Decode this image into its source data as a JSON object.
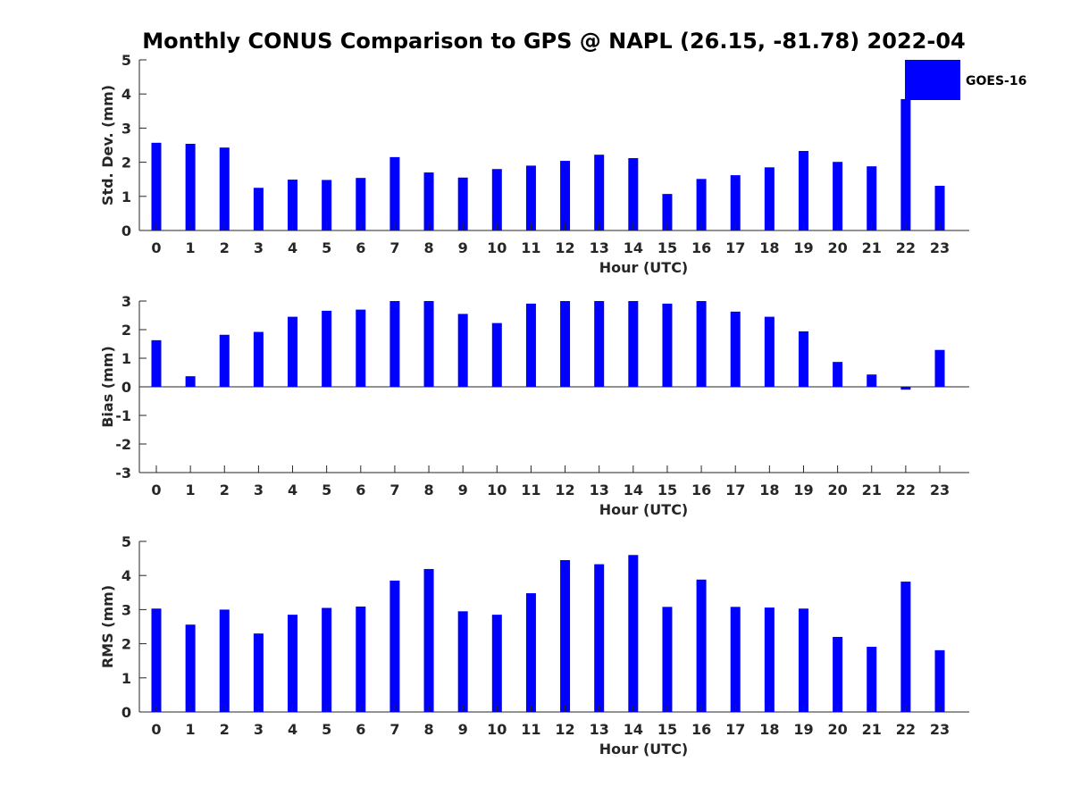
{
  "title": "Monthly CONUS Comparison to GPS @ NAPL (26.15, -81.78) 2022-04",
  "legend": {
    "label": "GOES-16",
    "color": "#0000ff",
    "placement": "top-right"
  },
  "chart_data": [
    {
      "type": "bar",
      "name": "std-dev",
      "title": "",
      "xlabel": "Hour (UTC)",
      "ylabel": "Std. Dev. (mm)",
      "categories": [
        "0",
        "1",
        "2",
        "3",
        "4",
        "5",
        "6",
        "7",
        "8",
        "9",
        "10",
        "11",
        "12",
        "13",
        "14",
        "15",
        "16",
        "17",
        "18",
        "19",
        "20",
        "21",
        "22",
        "23"
      ],
      "values": [
        2.57,
        2.54,
        2.43,
        1.25,
        1.49,
        1.48,
        1.54,
        2.15,
        1.7,
        1.55,
        1.8,
        1.9,
        2.04,
        2.22,
        2.12,
        1.07,
        1.51,
        1.62,
        1.85,
        2.33,
        2.01,
        1.88,
        3.85,
        1.31
      ],
      "ylim": [
        0,
        5
      ],
      "yticks": [
        0,
        1,
        2,
        3,
        4,
        5
      ],
      "color": "#0000ff"
    },
    {
      "type": "bar",
      "name": "bias",
      "title": "",
      "xlabel": "Hour (UTC)",
      "ylabel": "Bias (mm)",
      "categories": [
        "0",
        "1",
        "2",
        "3",
        "4",
        "5",
        "6",
        "7",
        "8",
        "9",
        "10",
        "11",
        "12",
        "13",
        "14",
        "15",
        "16",
        "17",
        "18",
        "19",
        "20",
        "21",
        "22",
        "23"
      ],
      "values": [
        1.63,
        0.37,
        1.82,
        1.92,
        2.45,
        2.66,
        2.7,
        3.0,
        3.0,
        2.55,
        2.23,
        2.91,
        3.0,
        3.0,
        3.0,
        2.91,
        3.0,
        2.63,
        2.45,
        1.94,
        0.87,
        0.43,
        -0.1,
        1.29
      ],
      "ylim": [
        -3,
        3
      ],
      "yticks": [
        -3,
        -2,
        -1,
        0,
        1,
        2,
        3
      ],
      "zero_line": true,
      "color": "#0000ff"
    },
    {
      "type": "bar",
      "name": "rms",
      "title": "",
      "xlabel": "Hour (UTC)",
      "ylabel": "RMS (mm)",
      "categories": [
        "0",
        "1",
        "2",
        "3",
        "4",
        "5",
        "6",
        "7",
        "8",
        "9",
        "10",
        "11",
        "12",
        "13",
        "14",
        "15",
        "16",
        "17",
        "18",
        "19",
        "20",
        "21",
        "22",
        "23"
      ],
      "values": [
        3.03,
        2.56,
        3.0,
        2.3,
        2.85,
        3.05,
        3.09,
        3.85,
        4.19,
        2.95,
        2.85,
        3.48,
        4.45,
        4.33,
        4.6,
        3.08,
        3.88,
        3.08,
        3.06,
        3.03,
        2.2,
        1.91,
        3.82,
        1.81
      ],
      "ylim": [
        0,
        5
      ],
      "yticks": [
        0,
        1,
        2,
        3,
        4,
        5
      ],
      "color": "#0000ff"
    }
  ]
}
